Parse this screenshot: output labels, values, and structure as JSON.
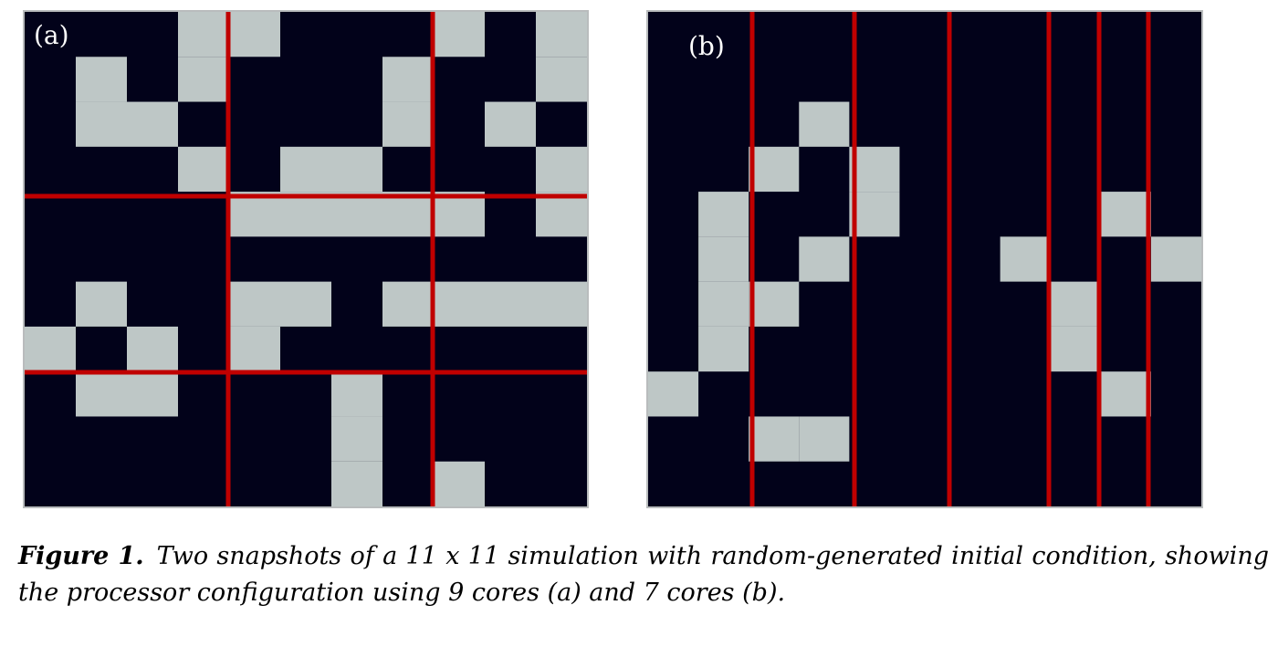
{
  "figure": {
    "panels": [
      {
        "label": "(a)",
        "cores": 9,
        "grid_size": 11,
        "cell_colors": {
          "alive": "#bec7c6",
          "dead": "#02021a"
        },
        "partition_color": "#c00000",
        "alive_cells": [
          [
            0,
            3
          ],
          [
            0,
            4
          ],
          [
            0,
            8
          ],
          [
            0,
            10
          ],
          [
            1,
            1
          ],
          [
            1,
            3
          ],
          [
            1,
            7
          ],
          [
            1,
            10
          ],
          [
            2,
            1
          ],
          [
            2,
            2
          ],
          [
            2,
            7
          ],
          [
            2,
            9
          ],
          [
            3,
            3
          ],
          [
            3,
            5
          ],
          [
            3,
            6
          ],
          [
            3,
            10
          ],
          [
            4,
            4
          ],
          [
            4,
            5
          ],
          [
            4,
            6
          ],
          [
            4,
            7
          ],
          [
            4,
            8
          ],
          [
            4,
            10
          ],
          [
            6,
            1
          ],
          [
            6,
            4
          ],
          [
            6,
            5
          ],
          [
            6,
            7
          ],
          [
            6,
            8
          ],
          [
            6,
            9
          ],
          [
            6,
            10
          ],
          [
            7,
            0
          ],
          [
            7,
            2
          ],
          [
            7,
            4
          ],
          [
            8,
            1
          ],
          [
            8,
            2
          ],
          [
            8,
            6
          ],
          [
            9,
            6
          ],
          [
            10,
            6
          ],
          [
            10,
            8
          ]
        ]
      },
      {
        "label": "(b)",
        "cores": 7,
        "grid_size": 11,
        "cell_colors": {
          "alive": "#bec7c6",
          "dead": "#02021a"
        },
        "partition_color": "#c00000",
        "alive_cells": [
          [
            2,
            3
          ],
          [
            3,
            2
          ],
          [
            3,
            4
          ],
          [
            4,
            1
          ],
          [
            4,
            4
          ],
          [
            4,
            9
          ],
          [
            5,
            1
          ],
          [
            5,
            3
          ],
          [
            5,
            7
          ],
          [
            5,
            10
          ],
          [
            6,
            1
          ],
          [
            6,
            2
          ],
          [
            6,
            8
          ],
          [
            7,
            1
          ],
          [
            7,
            8
          ],
          [
            8,
            0
          ],
          [
            8,
            9
          ],
          [
            9,
            2
          ],
          [
            9,
            3
          ]
        ]
      }
    ],
    "caption": {
      "lead": "Figure 1.",
      "text": "Two snapshots of a 11 x 11 simulation with random-generated initial condition, showing the processor configuration using 9 cores (a) and 7 cores (b)."
    }
  }
}
